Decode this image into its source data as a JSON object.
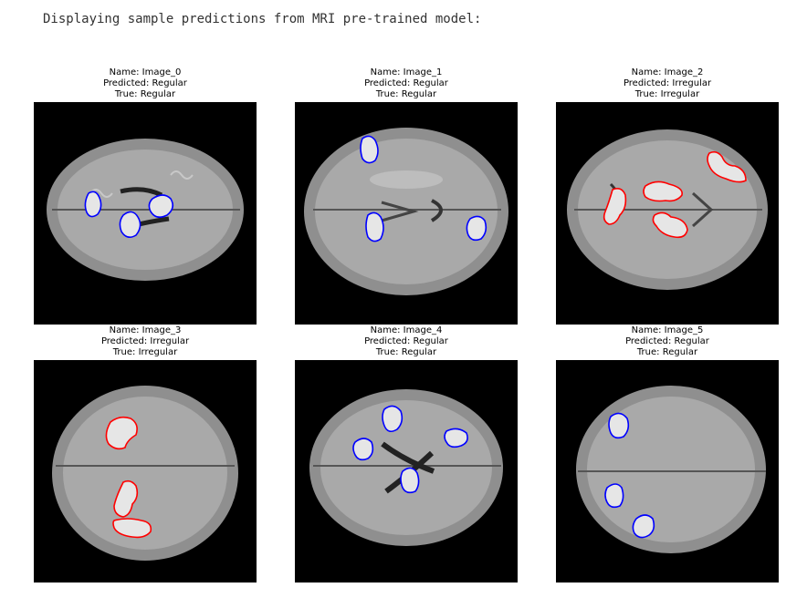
{
  "output": {
    "header_text": "Displaying sample predictions from MRI pre-trained model:"
  },
  "predictions": [
    {
      "name": "Name: Image_0",
      "predicted": "Predicted: Regular",
      "true": "True: Regular",
      "contour_color": "#0000ff"
    },
    {
      "name": "Name: Image_1",
      "predicted": "Predicted: Regular",
      "true": "True: Regular",
      "contour_color": "#0000ff"
    },
    {
      "name": "Name: Image_2",
      "predicted": "Predicted: Irregular",
      "true": "True: Irregular",
      "contour_color": "#ff0000"
    },
    {
      "name": "Name: Image_3",
      "predicted": "Predicted: Irregular",
      "true": "True: Irregular",
      "contour_color": "#ff0000"
    },
    {
      "name": "Name: Image_4",
      "predicted": "Predicted: Regular",
      "true": "True: Regular",
      "contour_color": "#0000ff"
    },
    {
      "name": "Name: Image_5",
      "predicted": "Predicted: Regular",
      "true": "True: Regular",
      "contour_color": "#0000ff"
    }
  ],
  "colors": {
    "regular_contour": "#0000ff",
    "irregular_contour": "#ff0000",
    "image_background": "#000000"
  }
}
